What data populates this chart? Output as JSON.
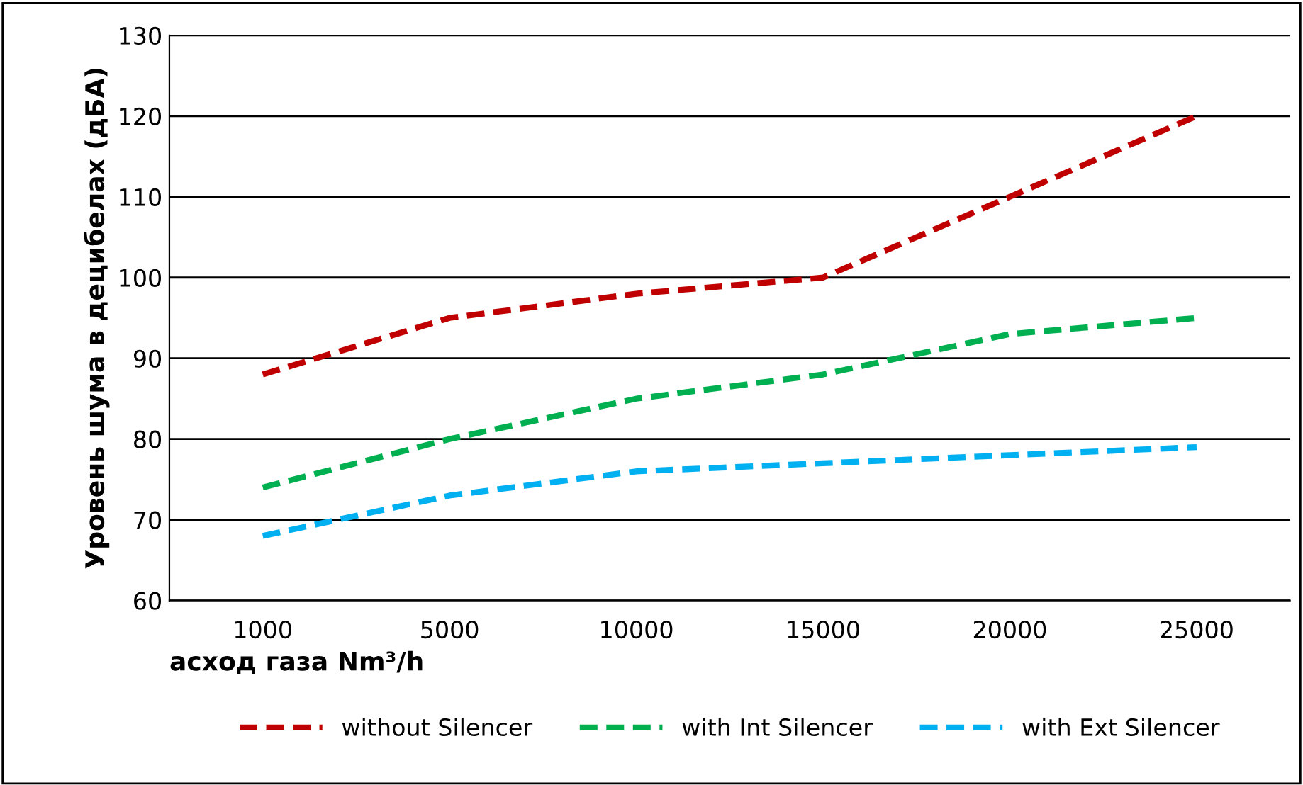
{
  "chart_data": {
    "type": "line",
    "xlabel": "асход газа Nm³/h",
    "ylabel": "Уровень шума в децибелах (дБА)",
    "categories": [
      "1000",
      "5000",
      "10000",
      "15000",
      "20000",
      "25000"
    ],
    "series": [
      {
        "name": "without Silencer",
        "color": "#c00000",
        "values": [
          88,
          95,
          98,
          100,
          110,
          120
        ]
      },
      {
        "name": "with Int Silencer",
        "color": "#00b050",
        "values": [
          74,
          80,
          85,
          88,
          93,
          95
        ]
      },
      {
        "name": "with Ext Silencer",
        "color": "#00b0f0",
        "values": [
          68,
          73,
          76,
          77,
          78,
          79
        ]
      }
    ],
    "ylim": [
      60,
      130
    ],
    "yticks": [
      60,
      70,
      80,
      90,
      100,
      110,
      120,
      130
    ],
    "grid": "y",
    "legend": "bottom",
    "line_style": "dashed",
    "marker": "none"
  }
}
